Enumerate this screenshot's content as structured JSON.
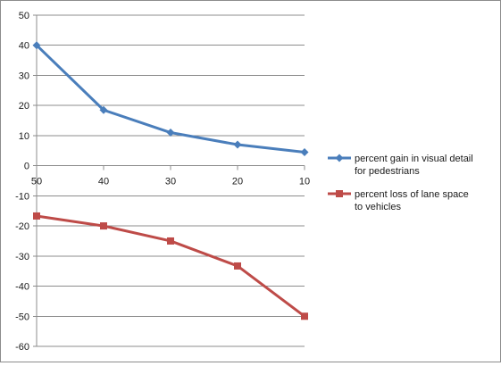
{
  "chart_data": {
    "type": "line",
    "title": "",
    "xlabel": "",
    "ylabel": "",
    "categories": [
      "50",
      "40",
      "30",
      "20",
      "10"
    ],
    "ylim": [
      -60,
      50
    ],
    "yticks": [
      50,
      40,
      30,
      20,
      10,
      0,
      -10,
      -20,
      -30,
      -40,
      -50,
      -60
    ],
    "grid": {
      "horizontal": true,
      "vertical": false
    },
    "legend_position": "right",
    "series": [
      {
        "name_lines": [
          "percent gain in visual detail",
          "for pedestrians"
        ],
        "values": [
          40,
          18.5,
          11,
          7,
          4.5
        ],
        "color": "#4a7ebb",
        "marker": "diamond"
      },
      {
        "name_lines": [
          "percent loss of lane space",
          "to vehicles"
        ],
        "values": [
          -16.7,
          -20,
          -25,
          -33.3,
          -50
        ],
        "color": "#be4b48",
        "marker": "square"
      }
    ]
  }
}
